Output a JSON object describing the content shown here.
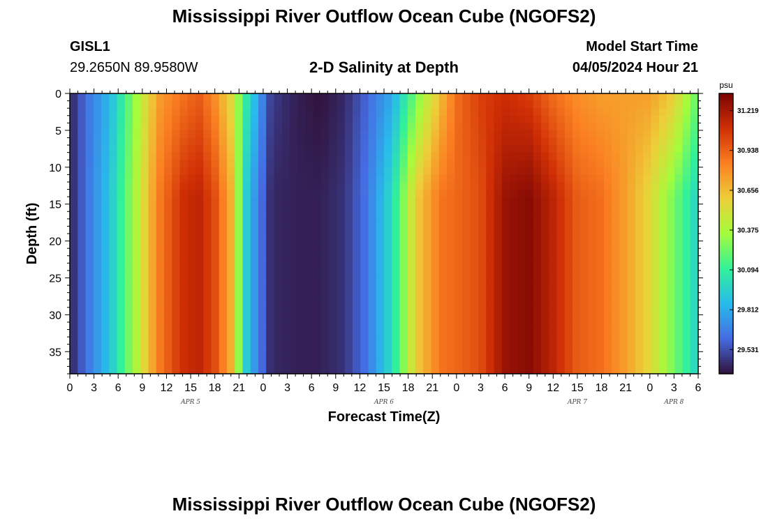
{
  "header": {
    "title": "Mississippi River Outflow Ocean Cube (NGOFS2)",
    "station_id": "GISL1",
    "station_coords": "29.2650N  89.9580W",
    "plot_title": "2-D Salinity at Depth",
    "model_start_label": "Model Start Time",
    "model_start_value": "04/05/2024 Hour 21"
  },
  "footer": {
    "title": "Mississippi River Outflow Ocean Cube (NGOFS2)"
  },
  "chart_data": {
    "type": "heatmap",
    "title": "2-D Salinity at Depth",
    "xlabel": "Forecast Time(Z)",
    "ylabel": "Depth (ft)",
    "x_ticks": [
      "0",
      "3",
      "6",
      "9",
      "12",
      "15",
      "18",
      "21",
      "0",
      "3",
      "6",
      "9",
      "12",
      "15",
      "18",
      "21",
      "0",
      "3",
      "6",
      "9",
      "12",
      "15",
      "18",
      "21",
      "0",
      "3",
      "6"
    ],
    "date_labels": [
      "APR 5",
      "APR 6",
      "APR 7",
      "APR 8"
    ],
    "x_range_hours": [
      0,
      78
    ],
    "y_ticks": [
      "0",
      "5",
      "10",
      "15",
      "20",
      "25",
      "30",
      "35"
    ],
    "y_range_ft": [
      0,
      38
    ],
    "y_reversed": true,
    "colorbar": {
      "unit": "psu",
      "ticks": [
        "31.219",
        "30.938",
        "30.656",
        "30.375",
        "30.094",
        "29.812",
        "29.531"
      ],
      "range": [
        29.36,
        31.34
      ]
    },
    "profile_hours": [
      0,
      2,
      5,
      8,
      11,
      14,
      16,
      18,
      20,
      22,
      25,
      28,
      31,
      34,
      37,
      40,
      43,
      46,
      48,
      51,
      54,
      57,
      60,
      63,
      66,
      69,
      72,
      75,
      78
    ],
    "surface_salinity": [
      29.4,
      29.62,
      29.85,
      30.3,
      30.75,
      30.88,
      30.95,
      30.8,
      30.55,
      30.05,
      29.48,
      29.4,
      29.36,
      29.42,
      29.6,
      29.8,
      30.25,
      30.65,
      30.9,
      31.05,
      31.1,
      31.05,
      30.9,
      30.8,
      30.75,
      30.75,
      30.75,
      30.6,
      30.2
    ],
    "bottom_salinity": [
      29.4,
      29.62,
      29.9,
      30.35,
      30.85,
      31.1,
      31.15,
      31.0,
      30.7,
      29.9,
      29.42,
      29.4,
      29.4,
      29.45,
      29.65,
      30.0,
      30.6,
      30.88,
      30.92,
      31.0,
      31.25,
      31.3,
      31.15,
      30.95,
      30.9,
      30.75,
      30.55,
      30.25,
      29.95
    ]
  }
}
